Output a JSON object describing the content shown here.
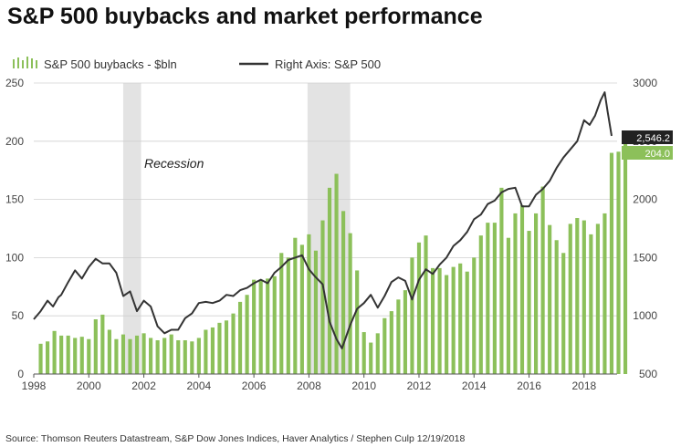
{
  "title": "S&P 500 buybacks and market performance",
  "legend": {
    "bars_label": "S&P 500 buybacks - $bln",
    "line_label": "Right Axis: S&P 500"
  },
  "source": "Source: Thomson Reuters Datastream, S&P Dow Jones Indices, Haver Analytics / Stephen Culp 12/19/2018",
  "colors": {
    "bars": "#8cc05a",
    "line": "#333333",
    "recession": "#e3e3e3",
    "bar_badge": "#8cc05a",
    "line_badge": "#222222"
  },
  "chart_data": {
    "type": "bar+line",
    "title": "S&P 500 buybacks and market performance",
    "x_range": [
      1998,
      2019.2
    ],
    "x_ticks": [
      "1998",
      "2000",
      "2002",
      "2004",
      "2006",
      "2008",
      "2010",
      "2012",
      "2014",
      "2016",
      "2018"
    ],
    "left_axis": {
      "label": "S&P 500 buybacks - $bln",
      "range": [
        0,
        250
      ],
      "ticks": [
        "0",
        "50",
        "100",
        "150",
        "200",
        "250"
      ]
    },
    "right_axis": {
      "label": "S&P 500",
      "range": [
        500,
        3000
      ],
      "ticks": [
        "500",
        "1000",
        "1500",
        "2000",
        "2500",
        "3000"
      ]
    },
    "recessions": [
      {
        "start": 2001.25,
        "end": 2001.9,
        "label": "Recession"
      },
      {
        "start": 2007.95,
        "end": 2009.5
      }
    ],
    "annotation": "Recession",
    "bars": {
      "name": "S&P 500 buybacks - $bln",
      "start": 1998.25,
      "step": 0.25,
      "values": [
        26,
        28,
        37,
        33,
        33,
        31,
        32,
        30,
        47,
        51,
        38,
        30,
        34,
        30,
        33,
        35,
        31,
        29,
        31,
        34,
        29,
        29,
        28,
        31,
        38,
        40,
        44,
        46,
        52,
        62,
        68,
        81,
        81,
        82,
        84,
        104,
        100,
        117,
        111,
        120,
        106,
        132,
        160,
        172,
        140,
        121,
        89,
        36,
        27,
        35,
        48,
        54,
        64,
        72,
        100,
        113,
        119,
        91,
        91,
        85,
        92,
        95,
        88,
        100,
        119,
        130,
        130,
        160,
        117,
        138,
        145,
        123,
        138,
        161,
        128,
        115,
        104,
        129,
        134,
        132,
        120,
        129,
        138,
        190,
        191,
        204
      ],
      "last_label": "204.0"
    },
    "line": {
      "name": "S&P 500",
      "axis": "right",
      "points": [
        [
          1998.0,
          970
        ],
        [
          1998.25,
          1040
        ],
        [
          1998.5,
          1130
        ],
        [
          1998.7,
          1080
        ],
        [
          1998.9,
          1160
        ],
        [
          1999.0,
          1180
        ],
        [
          1999.25,
          1290
        ],
        [
          1999.5,
          1390
        ],
        [
          1999.75,
          1320
        ],
        [
          2000.0,
          1420
        ],
        [
          2000.25,
          1490
        ],
        [
          2000.5,
          1450
        ],
        [
          2000.75,
          1450
        ],
        [
          2001.0,
          1370
        ],
        [
          2001.25,
          1170
        ],
        [
          2001.5,
          1210
        ],
        [
          2001.75,
          1040
        ],
        [
          2002.0,
          1130
        ],
        [
          2002.25,
          1080
        ],
        [
          2002.5,
          910
        ],
        [
          2002.75,
          850
        ],
        [
          2003.0,
          880
        ],
        [
          2003.25,
          880
        ],
        [
          2003.5,
          980
        ],
        [
          2003.75,
          1020
        ],
        [
          2004.0,
          1110
        ],
        [
          2004.25,
          1120
        ],
        [
          2004.5,
          1110
        ],
        [
          2004.75,
          1130
        ],
        [
          2005.0,
          1180
        ],
        [
          2005.25,
          1170
        ],
        [
          2005.5,
          1220
        ],
        [
          2005.75,
          1240
        ],
        [
          2006.0,
          1280
        ],
        [
          2006.25,
          1310
        ],
        [
          2006.5,
          1280
        ],
        [
          2006.75,
          1370
        ],
        [
          2007.0,
          1420
        ],
        [
          2007.25,
          1480
        ],
        [
          2007.5,
          1500
        ],
        [
          2007.75,
          1520
        ],
        [
          2008.0,
          1400
        ],
        [
          2008.25,
          1330
        ],
        [
          2008.5,
          1270
        ],
        [
          2008.75,
          950
        ],
        [
          2009.0,
          800
        ],
        [
          2009.2,
          720
        ],
        [
          2009.5,
          920
        ],
        [
          2009.75,
          1060
        ],
        [
          2010.0,
          1110
        ],
        [
          2010.25,
          1180
        ],
        [
          2010.5,
          1070
        ],
        [
          2010.75,
          1170
        ],
        [
          2011.0,
          1290
        ],
        [
          2011.25,
          1330
        ],
        [
          2011.5,
          1300
        ],
        [
          2011.75,
          1140
        ],
        [
          2012.0,
          1310
        ],
        [
          2012.25,
          1400
        ],
        [
          2012.5,
          1360
        ],
        [
          2012.75,
          1440
        ],
        [
          2013.0,
          1500
        ],
        [
          2013.25,
          1600
        ],
        [
          2013.5,
          1650
        ],
        [
          2013.75,
          1720
        ],
        [
          2014.0,
          1830
        ],
        [
          2014.25,
          1870
        ],
        [
          2014.5,
          1960
        ],
        [
          2014.75,
          1990
        ],
        [
          2015.0,
          2060
        ],
        [
          2015.25,
          2090
        ],
        [
          2015.5,
          2100
        ],
        [
          2015.75,
          1940
        ],
        [
          2016.0,
          1940
        ],
        [
          2016.25,
          2040
        ],
        [
          2016.5,
          2090
        ],
        [
          2016.75,
          2160
        ],
        [
          2017.0,
          2270
        ],
        [
          2017.25,
          2360
        ],
        [
          2017.5,
          2430
        ],
        [
          2017.75,
          2500
        ],
        [
          2018.0,
          2680
        ],
        [
          2018.2,
          2640
        ],
        [
          2018.4,
          2720
        ],
        [
          2018.6,
          2850
        ],
        [
          2018.75,
          2920
        ],
        [
          2018.85,
          2760
        ],
        [
          2019.0,
          2546.2
        ]
      ],
      "last_label": "2,546.2"
    }
  }
}
